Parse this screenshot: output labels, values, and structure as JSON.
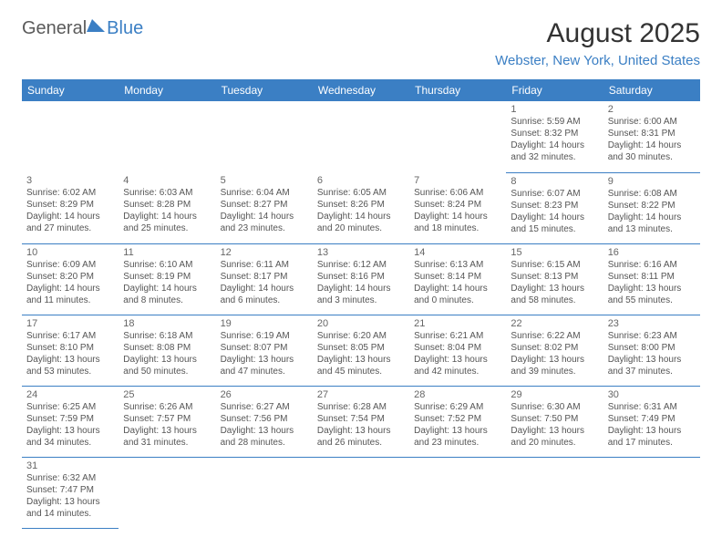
{
  "logo": {
    "general": "General",
    "blue": "Blue"
  },
  "title": "August 2025",
  "location": "Webster, New York, United States",
  "colors": {
    "header_bg": "#3b7fc4",
    "header_text": "#ffffff",
    "border": "#3b7fc4",
    "body_text": "#555555",
    "daynum_text": "#666666",
    "title_text": "#333333"
  },
  "day_headers": [
    "Sunday",
    "Monday",
    "Tuesday",
    "Wednesday",
    "Thursday",
    "Friday",
    "Saturday"
  ],
  "weeks": [
    [
      {
        "day": "",
        "sunrise": "",
        "sunset": "",
        "daylight": ""
      },
      {
        "day": "",
        "sunrise": "",
        "sunset": "",
        "daylight": ""
      },
      {
        "day": "",
        "sunrise": "",
        "sunset": "",
        "daylight": ""
      },
      {
        "day": "",
        "sunrise": "",
        "sunset": "",
        "daylight": ""
      },
      {
        "day": "",
        "sunrise": "",
        "sunset": "",
        "daylight": ""
      },
      {
        "day": "1",
        "sunrise": "Sunrise: 5:59 AM",
        "sunset": "Sunset: 8:32 PM",
        "daylight": "Daylight: 14 hours and 32 minutes."
      },
      {
        "day": "2",
        "sunrise": "Sunrise: 6:00 AM",
        "sunset": "Sunset: 8:31 PM",
        "daylight": "Daylight: 14 hours and 30 minutes."
      }
    ],
    [
      {
        "day": "3",
        "sunrise": "Sunrise: 6:02 AM",
        "sunset": "Sunset: 8:29 PM",
        "daylight": "Daylight: 14 hours and 27 minutes."
      },
      {
        "day": "4",
        "sunrise": "Sunrise: 6:03 AM",
        "sunset": "Sunset: 8:28 PM",
        "daylight": "Daylight: 14 hours and 25 minutes."
      },
      {
        "day": "5",
        "sunrise": "Sunrise: 6:04 AM",
        "sunset": "Sunset: 8:27 PM",
        "daylight": "Daylight: 14 hours and 23 minutes."
      },
      {
        "day": "6",
        "sunrise": "Sunrise: 6:05 AM",
        "sunset": "Sunset: 8:26 PM",
        "daylight": "Daylight: 14 hours and 20 minutes."
      },
      {
        "day": "7",
        "sunrise": "Sunrise: 6:06 AM",
        "sunset": "Sunset: 8:24 PM",
        "daylight": "Daylight: 14 hours and 18 minutes."
      },
      {
        "day": "8",
        "sunrise": "Sunrise: 6:07 AM",
        "sunset": "Sunset: 8:23 PM",
        "daylight": "Daylight: 14 hours and 15 minutes."
      },
      {
        "day": "9",
        "sunrise": "Sunrise: 6:08 AM",
        "sunset": "Sunset: 8:22 PM",
        "daylight": "Daylight: 14 hours and 13 minutes."
      }
    ],
    [
      {
        "day": "10",
        "sunrise": "Sunrise: 6:09 AM",
        "sunset": "Sunset: 8:20 PM",
        "daylight": "Daylight: 14 hours and 11 minutes."
      },
      {
        "day": "11",
        "sunrise": "Sunrise: 6:10 AM",
        "sunset": "Sunset: 8:19 PM",
        "daylight": "Daylight: 14 hours and 8 minutes."
      },
      {
        "day": "12",
        "sunrise": "Sunrise: 6:11 AM",
        "sunset": "Sunset: 8:17 PM",
        "daylight": "Daylight: 14 hours and 6 minutes."
      },
      {
        "day": "13",
        "sunrise": "Sunrise: 6:12 AM",
        "sunset": "Sunset: 8:16 PM",
        "daylight": "Daylight: 14 hours and 3 minutes."
      },
      {
        "day": "14",
        "sunrise": "Sunrise: 6:13 AM",
        "sunset": "Sunset: 8:14 PM",
        "daylight": "Daylight: 14 hours and 0 minutes."
      },
      {
        "day": "15",
        "sunrise": "Sunrise: 6:15 AM",
        "sunset": "Sunset: 8:13 PM",
        "daylight": "Daylight: 13 hours and 58 minutes."
      },
      {
        "day": "16",
        "sunrise": "Sunrise: 6:16 AM",
        "sunset": "Sunset: 8:11 PM",
        "daylight": "Daylight: 13 hours and 55 minutes."
      }
    ],
    [
      {
        "day": "17",
        "sunrise": "Sunrise: 6:17 AM",
        "sunset": "Sunset: 8:10 PM",
        "daylight": "Daylight: 13 hours and 53 minutes."
      },
      {
        "day": "18",
        "sunrise": "Sunrise: 6:18 AM",
        "sunset": "Sunset: 8:08 PM",
        "daylight": "Daylight: 13 hours and 50 minutes."
      },
      {
        "day": "19",
        "sunrise": "Sunrise: 6:19 AM",
        "sunset": "Sunset: 8:07 PM",
        "daylight": "Daylight: 13 hours and 47 minutes."
      },
      {
        "day": "20",
        "sunrise": "Sunrise: 6:20 AM",
        "sunset": "Sunset: 8:05 PM",
        "daylight": "Daylight: 13 hours and 45 minutes."
      },
      {
        "day": "21",
        "sunrise": "Sunrise: 6:21 AM",
        "sunset": "Sunset: 8:04 PM",
        "daylight": "Daylight: 13 hours and 42 minutes."
      },
      {
        "day": "22",
        "sunrise": "Sunrise: 6:22 AM",
        "sunset": "Sunset: 8:02 PM",
        "daylight": "Daylight: 13 hours and 39 minutes."
      },
      {
        "day": "23",
        "sunrise": "Sunrise: 6:23 AM",
        "sunset": "Sunset: 8:00 PM",
        "daylight": "Daylight: 13 hours and 37 minutes."
      }
    ],
    [
      {
        "day": "24",
        "sunrise": "Sunrise: 6:25 AM",
        "sunset": "Sunset: 7:59 PM",
        "daylight": "Daylight: 13 hours and 34 minutes."
      },
      {
        "day": "25",
        "sunrise": "Sunrise: 6:26 AM",
        "sunset": "Sunset: 7:57 PM",
        "daylight": "Daylight: 13 hours and 31 minutes."
      },
      {
        "day": "26",
        "sunrise": "Sunrise: 6:27 AM",
        "sunset": "Sunset: 7:56 PM",
        "daylight": "Daylight: 13 hours and 28 minutes."
      },
      {
        "day": "27",
        "sunrise": "Sunrise: 6:28 AM",
        "sunset": "Sunset: 7:54 PM",
        "daylight": "Daylight: 13 hours and 26 minutes."
      },
      {
        "day": "28",
        "sunrise": "Sunrise: 6:29 AM",
        "sunset": "Sunset: 7:52 PM",
        "daylight": "Daylight: 13 hours and 23 minutes."
      },
      {
        "day": "29",
        "sunrise": "Sunrise: 6:30 AM",
        "sunset": "Sunset: 7:50 PM",
        "daylight": "Daylight: 13 hours and 20 minutes."
      },
      {
        "day": "30",
        "sunrise": "Sunrise: 6:31 AM",
        "sunset": "Sunset: 7:49 PM",
        "daylight": "Daylight: 13 hours and 17 minutes."
      }
    ],
    [
      {
        "day": "31",
        "sunrise": "Sunrise: 6:32 AM",
        "sunset": "Sunset: 7:47 PM",
        "daylight": "Daylight: 13 hours and 14 minutes."
      },
      {
        "day": "",
        "sunrise": "",
        "sunset": "",
        "daylight": ""
      },
      {
        "day": "",
        "sunrise": "",
        "sunset": "",
        "daylight": ""
      },
      {
        "day": "",
        "sunrise": "",
        "sunset": "",
        "daylight": ""
      },
      {
        "day": "",
        "sunrise": "",
        "sunset": "",
        "daylight": ""
      },
      {
        "day": "",
        "sunrise": "",
        "sunset": "",
        "daylight": ""
      },
      {
        "day": "",
        "sunrise": "",
        "sunset": "",
        "daylight": ""
      }
    ]
  ]
}
